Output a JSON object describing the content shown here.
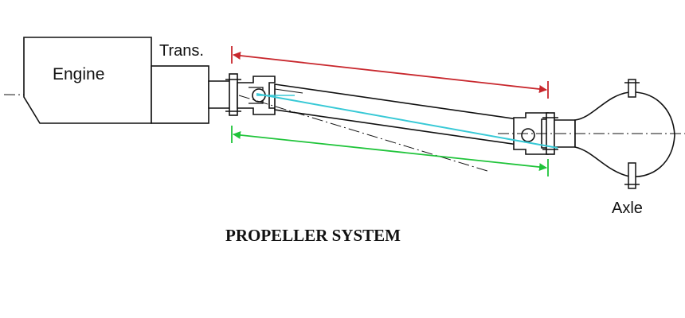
{
  "diagram": {
    "title": "PROPELLER SYSTEM",
    "labels": {
      "engine": "Engine",
      "transmission": "Trans.",
      "axle": "Axle"
    },
    "colors": {
      "outline": "#111111",
      "red_dimension": "#c8272d",
      "green_dimension": "#1fc43a",
      "cyan_axis": "#38c9d6",
      "background": "#ffffff"
    }
  }
}
